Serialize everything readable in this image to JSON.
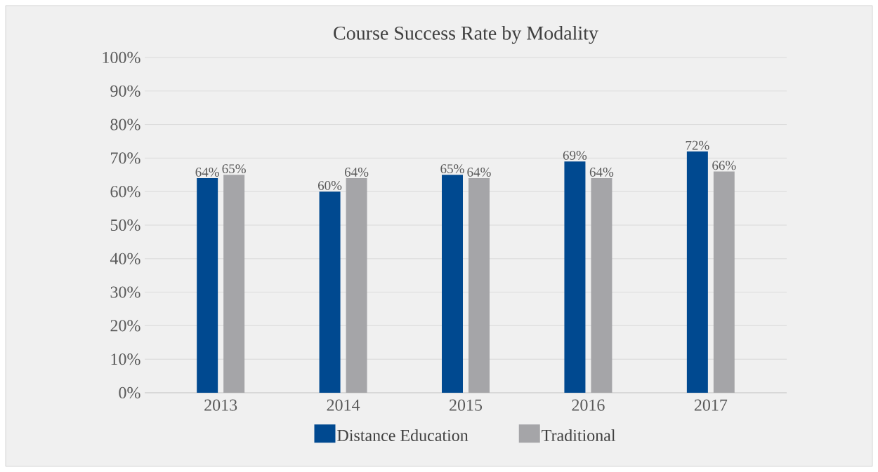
{
  "chart_data": {
    "type": "bar",
    "title": "Course Success Rate by Modality",
    "categories": [
      "2013",
      "2014",
      "2015",
      "2016",
      "2017"
    ],
    "series": [
      {
        "name": "Distance Education",
        "color": "#004990",
        "values": [
          64,
          60,
          65,
          69,
          72
        ],
        "value_labels": [
          "64%",
          "60%",
          "65%",
          "69%",
          "72%"
        ]
      },
      {
        "name": "Traditional",
        "color": "#a5a5a8",
        "values": [
          65,
          64,
          64,
          64,
          66
        ],
        "value_labels": [
          "65%",
          "64%",
          "64%",
          "64%",
          "66%"
        ]
      }
    ],
    "ylim": [
      0,
      100
    ],
    "yticks": [
      {
        "value": 0,
        "label": "0%"
      },
      {
        "value": 10,
        "label": "10%"
      },
      {
        "value": 20,
        "label": "20%"
      },
      {
        "value": 30,
        "label": "30%"
      },
      {
        "value": 40,
        "label": "40%"
      },
      {
        "value": 50,
        "label": "50%"
      },
      {
        "value": 60,
        "label": "60%"
      },
      {
        "value": 70,
        "label": "70%"
      },
      {
        "value": 80,
        "label": "80%"
      },
      {
        "value": 90,
        "label": "90%"
      },
      {
        "value": 100,
        "label": "100%"
      }
    ],
    "grid": "y",
    "legend": "bottom"
  }
}
